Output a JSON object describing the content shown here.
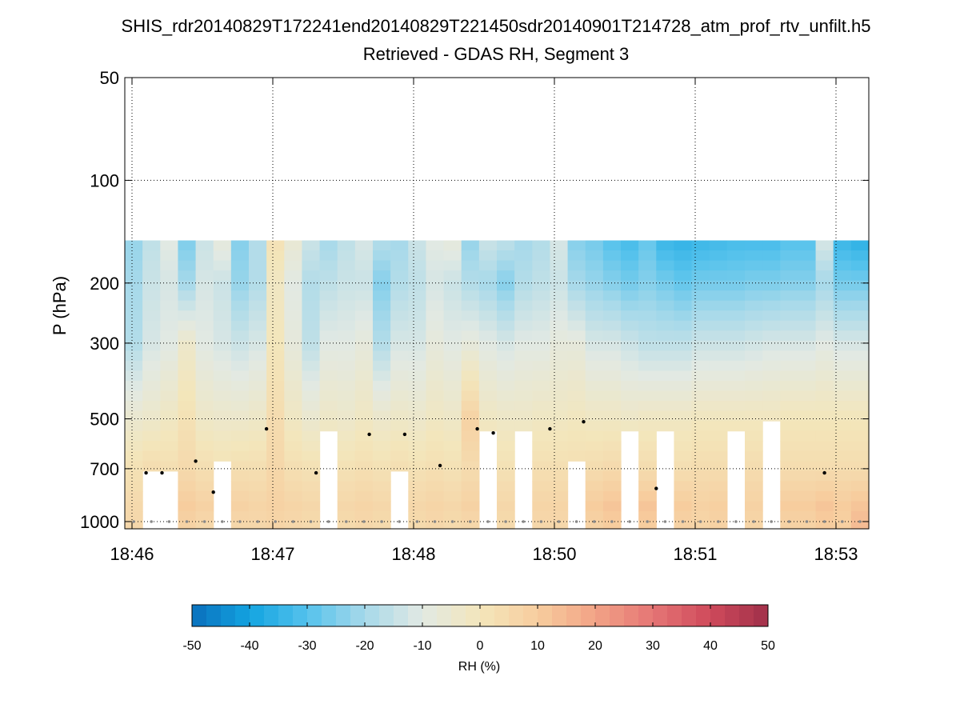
{
  "chart_data": {
    "type": "heatmap",
    "title": "SHIS_rdr20140829T172241end20140829T221450sdr20140901T214728_atm_prof_rtv_unfilt.h5",
    "subtitle": "Retrieved - GDAS RH, Segment 3",
    "ylabel": "P (hPa)",
    "y_scale": "log",
    "ylim": [
      1050,
      50
    ],
    "y_ticks": [
      "50",
      "100",
      "200",
      "300",
      "500",
      "700",
      "1000"
    ],
    "y_tick_values": [
      50,
      100,
      200,
      300,
      500,
      700,
      1000
    ],
    "x_ticks": [
      "18:46",
      "18:47",
      "18:48",
      "18:50",
      "18:51",
      "18:53"
    ],
    "n_columns": 42,
    "data_top_hPa": 150,
    "grid": "dotted",
    "colorbar": {
      "label": "RH (%)",
      "range": [
        -50,
        50
      ],
      "ticks": [
        "-50",
        "-40",
        "-30",
        "-20",
        "-10",
        "0",
        "10",
        "20",
        "30",
        "40",
        "50"
      ],
      "tick_values": [
        -50,
        -40,
        -30,
        -20,
        -10,
        0,
        10,
        20,
        30,
        40,
        50
      ],
      "colors": [
        "#0a6fbd",
        "#13a4e0",
        "#55c2ec",
        "#a7d9ea",
        "#e2e9e3",
        "#f3e6bb",
        "#f7cd9e",
        "#f2a386",
        "#e57575",
        "#cf4a5b",
        "#a0304a"
      ]
    },
    "cloud_top_hPa": [
      null,
      720,
      720,
      null,
      null,
      670,
      null,
      null,
      null,
      null,
      null,
      540,
      null,
      null,
      null,
      720,
      null,
      null,
      null,
      null,
      555,
      null,
      555,
      null,
      null,
      685,
      null,
      null,
      530,
      null,
      550,
      null,
      null,
      null,
      530,
      null,
      510,
      null,
      null,
      null,
      null,
      null
    ],
    "cloud_markers": [
      {
        "col": 0.7,
        "p": 720
      },
      {
        "col": 1.6,
        "p": 720
      },
      {
        "col": 3.5,
        "p": 665
      },
      {
        "col": 4.5,
        "p": 820
      },
      {
        "col": 7.5,
        "p": 535
      },
      {
        "col": 10.3,
        "p": 720
      },
      {
        "col": 13.3,
        "p": 555
      },
      {
        "col": 15.3,
        "p": 555
      },
      {
        "col": 17.3,
        "p": 685
      },
      {
        "col": 19.4,
        "p": 535
      },
      {
        "col": 20.3,
        "p": 550
      },
      {
        "col": 23.5,
        "p": 535
      },
      {
        "col": 25.4,
        "p": 510
      },
      {
        "col": 29.5,
        "p": 800
      },
      {
        "col": 39.0,
        "p": 720
      }
    ],
    "rh_levels_hPa": [
      150,
      200,
      300,
      500,
      700,
      900,
      1000
    ],
    "rh_diff": [
      [
        -22,
        -20,
        -18,
        -5,
        2,
        5,
        6
      ],
      [
        -16,
        -14,
        -12,
        -4,
        4,
        8,
        7
      ],
      [
        -10,
        -12,
        -10,
        -2,
        3,
        7,
        5
      ],
      [
        -25,
        -20,
        -4,
        2,
        5,
        10,
        8
      ],
      [
        -14,
        -12,
        -10,
        -3,
        3,
        8,
        6
      ],
      [
        -8,
        -14,
        -12,
        -4,
        2,
        6,
        5
      ],
      [
        -24,
        -22,
        -14,
        -4,
        3,
        8,
        6
      ],
      [
        -18,
        -18,
        -12,
        -3,
        3,
        7,
        6
      ],
      [
        2,
        -2,
        0,
        4,
        6,
        8,
        7
      ],
      [
        -6,
        -10,
        -8,
        -2,
        3,
        7,
        6
      ],
      [
        -14,
        -18,
        -16,
        -5,
        2,
        6,
        5
      ],
      [
        -20,
        -16,
        -10,
        -3,
        3,
        8,
        7
      ],
      [
        -16,
        -14,
        -10,
        -4,
        2,
        6,
        5
      ],
      [
        -12,
        -14,
        -8,
        -2,
        3,
        7,
        6
      ],
      [
        -18,
        -24,
        -18,
        -4,
        2,
        6,
        5
      ],
      [
        -20,
        -18,
        -12,
        -3,
        3,
        8,
        6
      ],
      [
        -14,
        -16,
        -12,
        -4,
        2,
        6,
        5
      ],
      [
        -10,
        -12,
        -8,
        -2,
        3,
        7,
        6
      ],
      [
        -8,
        -14,
        -10,
        -3,
        2,
        6,
        5
      ],
      [
        -22,
        -18,
        -8,
        8,
        4,
        8,
        6
      ],
      [
        -14,
        -20,
        -10,
        -2,
        3,
        7,
        6
      ],
      [
        -16,
        -24,
        -12,
        -3,
        2,
        6,
        5
      ],
      [
        -20,
        -18,
        -10,
        -3,
        3,
        8,
        6
      ],
      [
        -18,
        -16,
        -10,
        -2,
        3,
        7,
        6
      ],
      [
        -12,
        -14,
        -8,
        -2,
        3,
        7,
        6
      ],
      [
        -24,
        -20,
        -8,
        -1,
        3,
        8,
        7
      ],
      [
        -26,
        -22,
        -12,
        -2,
        4,
        10,
        8
      ],
      [
        -30,
        -24,
        -12,
        -2,
        5,
        12,
        10
      ],
      [
        -32,
        -26,
        -14,
        -3,
        5,
        14,
        12
      ],
      [
        -28,
        -24,
        -16,
        -2,
        4,
        12,
        10
      ],
      [
        -34,
        -26,
        -16,
        -2,
        3,
        12,
        10
      ],
      [
        -35,
        -28,
        -16,
        -2,
        3,
        10,
        8
      ],
      [
        -34,
        -26,
        -14,
        -1,
        4,
        8,
        7
      ],
      [
        -33,
        -26,
        -14,
        -1,
        4,
        9,
        8
      ],
      [
        -32,
        -26,
        -14,
        -1,
        4,
        9,
        7
      ],
      [
        -32,
        -25,
        -13,
        -1,
        4,
        8,
        7
      ],
      [
        -32,
        -25,
        -12,
        -1,
        4,
        9,
        8
      ],
      [
        -30,
        -24,
        -12,
        0,
        4,
        10,
        8
      ],
      [
        -30,
        -24,
        -12,
        0,
        4,
        10,
        8
      ],
      [
        -12,
        -20,
        -10,
        0,
        4,
        12,
        10
      ],
      [
        -34,
        -26,
        -12,
        0,
        4,
        10,
        9
      ],
      [
        -36,
        -26,
        -12,
        0,
        4,
        12,
        14
      ]
    ]
  }
}
